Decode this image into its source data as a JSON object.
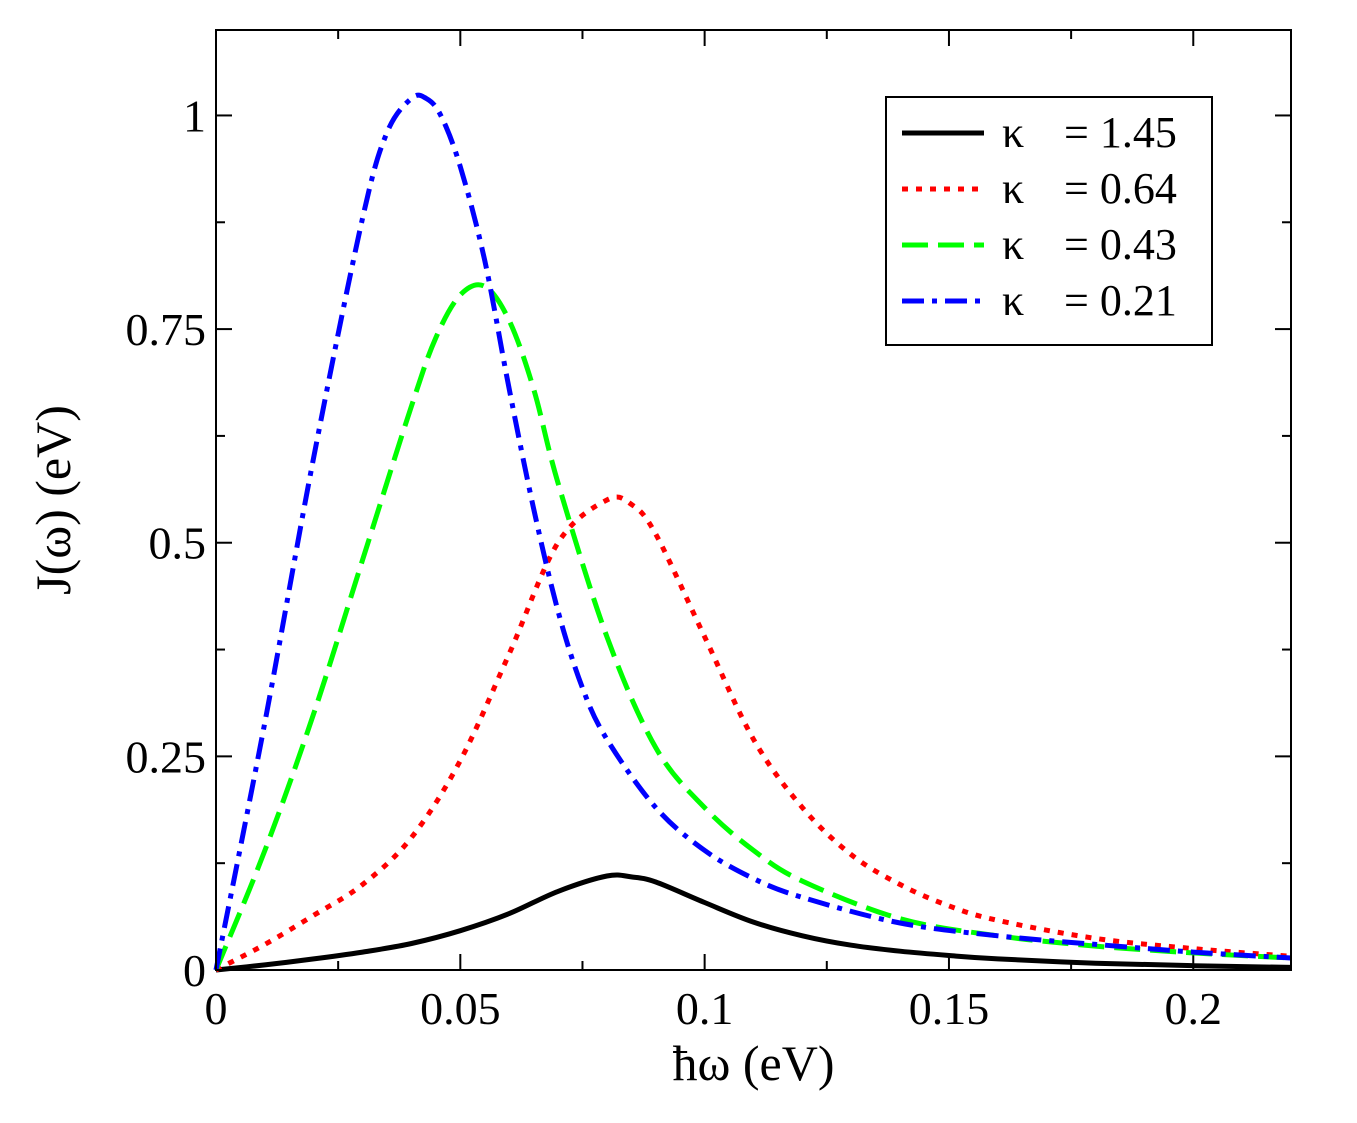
{
  "chart_data": {
    "type": "line",
    "xlabel": "ħω (eV)",
    "ylabel": "J(ω) (eV)",
    "xlim": [
      0,
      0.22
    ],
    "ylim": [
      0,
      1.1
    ],
    "xticks": [
      0,
      0.05,
      0.1,
      0.15,
      0.2
    ],
    "xtick_labels": [
      "0",
      "0.05",
      "0.1",
      "0.15",
      "0.2"
    ],
    "xminor": [
      0.025,
      0.075,
      0.125,
      0.175
    ],
    "yticks": [
      0,
      0.25,
      0.5,
      0.75,
      1
    ],
    "ytick_labels": [
      "0",
      "0.25",
      "0.5",
      "0.75",
      "1"
    ],
    "yminor": [
      0.125,
      0.375,
      0.625,
      0.875
    ],
    "legend_position": "top-right",
    "series": [
      {
        "name": "κ = 1.45",
        "symbol": "κ",
        "value_label": "= 1.45",
        "color": "#000000",
        "style": "solid",
        "x": [
          0,
          0.01,
          0.02,
          0.03,
          0.04,
          0.05,
          0.06,
          0.07,
          0.08,
          0.085,
          0.09,
          0.1,
          0.11,
          0.12,
          0.13,
          0.14,
          0.15,
          0.16,
          0.18,
          0.2,
          0.22
        ],
        "y": [
          0,
          0.006,
          0.013,
          0.021,
          0.031,
          0.046,
          0.066,
          0.092,
          0.11,
          0.109,
          0.103,
          0.079,
          0.056,
          0.04,
          0.029,
          0.022,
          0.017,
          0.013,
          0.008,
          0.005,
          0.003
        ]
      },
      {
        "name": "κ = 0.64",
        "symbol": "κ",
        "value_label": "= 0.64",
        "color": "#ff0000",
        "style": "dotted",
        "x": [
          0,
          0.01,
          0.02,
          0.03,
          0.04,
          0.05,
          0.06,
          0.07,
          0.08,
          0.085,
          0.09,
          0.1,
          0.11,
          0.12,
          0.13,
          0.14,
          0.15,
          0.16,
          0.18,
          0.2,
          0.22
        ],
        "y": [
          0,
          0.03,
          0.064,
          0.1,
          0.155,
          0.245,
          0.37,
          0.5,
          0.55,
          0.545,
          0.51,
          0.39,
          0.27,
          0.19,
          0.135,
          0.1,
          0.075,
          0.058,
          0.037,
          0.025,
          0.016
        ]
      },
      {
        "name": "κ = 0.43",
        "symbol": "κ",
        "value_label": "= 0.43",
        "color": "#00ff00",
        "style": "dashed",
        "x": [
          0,
          0.01,
          0.02,
          0.03,
          0.04,
          0.045,
          0.05,
          0.055,
          0.06,
          0.065,
          0.07,
          0.08,
          0.09,
          0.1,
          0.11,
          0.12,
          0.14,
          0.16,
          0.18,
          0.2,
          0.22
        ],
        "y": [
          0,
          0.14,
          0.3,
          0.48,
          0.66,
          0.74,
          0.79,
          0.8,
          0.76,
          0.68,
          0.57,
          0.39,
          0.26,
          0.19,
          0.14,
          0.104,
          0.06,
          0.04,
          0.028,
          0.02,
          0.014
        ]
      },
      {
        "name": "κ = 0.21",
        "symbol": "κ",
        "value_label": "= 0.21",
        "color": "#0000ff",
        "style": "dashdot",
        "x": [
          0,
          0.01,
          0.02,
          0.03,
          0.035,
          0.04,
          0.043,
          0.046,
          0.05,
          0.055,
          0.06,
          0.065,
          0.07,
          0.075,
          0.08,
          0.09,
          0.1,
          0.11,
          0.12,
          0.14,
          0.16,
          0.18,
          0.2,
          0.22
        ],
        "y": [
          0,
          0.29,
          0.6,
          0.88,
          0.98,
          1.02,
          1.02,
          1.0,
          0.94,
          0.83,
          0.68,
          0.54,
          0.42,
          0.33,
          0.27,
          0.19,
          0.14,
          0.107,
          0.085,
          0.055,
          0.04,
          0.03,
          0.021,
          0.014
        ]
      }
    ]
  }
}
